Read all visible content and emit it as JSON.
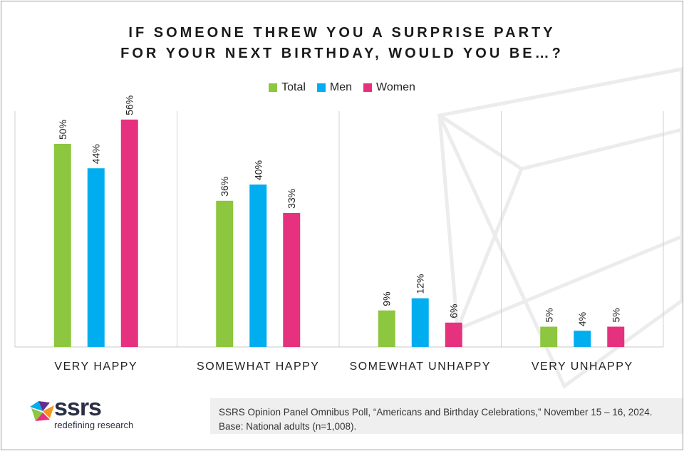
{
  "title_lines": [
    "IF SOMEONE THREW YOU A SURPRISE PARTY",
    "FOR YOUR NEXT BIRTHDAY, WOULD YOU BE…?"
  ],
  "legend": [
    {
      "label": "Total",
      "color": "#8dc63f"
    },
    {
      "label": "Men",
      "color": "#00aeef"
    },
    {
      "label": "Women",
      "color": "#e6317f"
    }
  ],
  "chart_data": {
    "type": "bar",
    "categories": [
      "VERY HAPPY",
      "SOMEWHAT HAPPY",
      "SOMEWHAT UNHAPPY",
      "VERY UNHAPPY"
    ],
    "series": [
      {
        "name": "Total",
        "color": "#8dc63f",
        "values": [
          50,
          36,
          9,
          5
        ]
      },
      {
        "name": "Men",
        "color": "#00aeef",
        "values": [
          44,
          40,
          12,
          4
        ]
      },
      {
        "name": "Women",
        "color": "#e6317f",
        "values": [
          56,
          33,
          6,
          5
        ]
      }
    ],
    "value_suffix": "%",
    "ylim": [
      0,
      60
    ],
    "grid": false,
    "legend_position": "top-center"
  },
  "source": {
    "line1": "SSRS Opinion Panel Omnibus Poll, “Americans and Birthday Celebrations,” November 15 – 16, 2024.",
    "line2": "Base: National adults (n=1,008)."
  },
  "logo": {
    "word": "ssrs",
    "tagline": "redefining research"
  }
}
